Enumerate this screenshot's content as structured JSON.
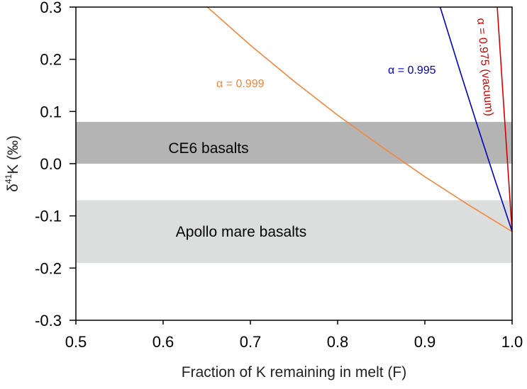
{
  "chart_data": {
    "type": "line",
    "xlabel": "Fraction of K remaining in melt (F)",
    "ylabel_parts": {
      "prefix": "δ",
      "sup": "41",
      "suffix": "K (‰)"
    },
    "xlim": [
      0.5,
      1.0
    ],
    "ylim": [
      -0.3,
      0.3
    ],
    "xticks": [
      "0.5",
      "0.6",
      "0.7",
      "0.8",
      "0.9",
      "1.0"
    ],
    "yticks": [
      "0.3",
      "0.2",
      "0.1",
      "0.0",
      "-0.1",
      "-0.2",
      "-0.3"
    ],
    "grid": false,
    "bands": [
      {
        "label": "CE6 basalts",
        "y0": 0.0,
        "y1": 0.08,
        "color": "#b4b4b4"
      },
      {
        "label": "Apollo mare basalts",
        "y0": -0.19,
        "y1": -0.07,
        "color": "#dcdddd"
      }
    ],
    "series": [
      {
        "name": "α = 0.999",
        "color": "#f0883e",
        "x": [
          0.65,
          0.7,
          0.75,
          0.8,
          0.85,
          0.9,
          0.95,
          1.0
        ],
        "y": [
          0.301,
          0.227,
          0.158,
          0.093,
          0.033,
          -0.025,
          -0.079,
          -0.13
        ]
      },
      {
        "name": "α = 0.995",
        "color": "#0000c0",
        "x": [
          0.917,
          0.92,
          0.94,
          0.96,
          0.98,
          1.0
        ],
        "y": [
          0.303,
          0.287,
          0.179,
          0.074,
          -0.029,
          -0.13
        ]
      },
      {
        "name": "α = 0.975 (vacuum)",
        "color": "#d40000",
        "x": [
          0.983,
          0.99,
          1.0
        ],
        "y": [
          0.299,
          0.121,
          -0.13
        ]
      }
    ]
  }
}
